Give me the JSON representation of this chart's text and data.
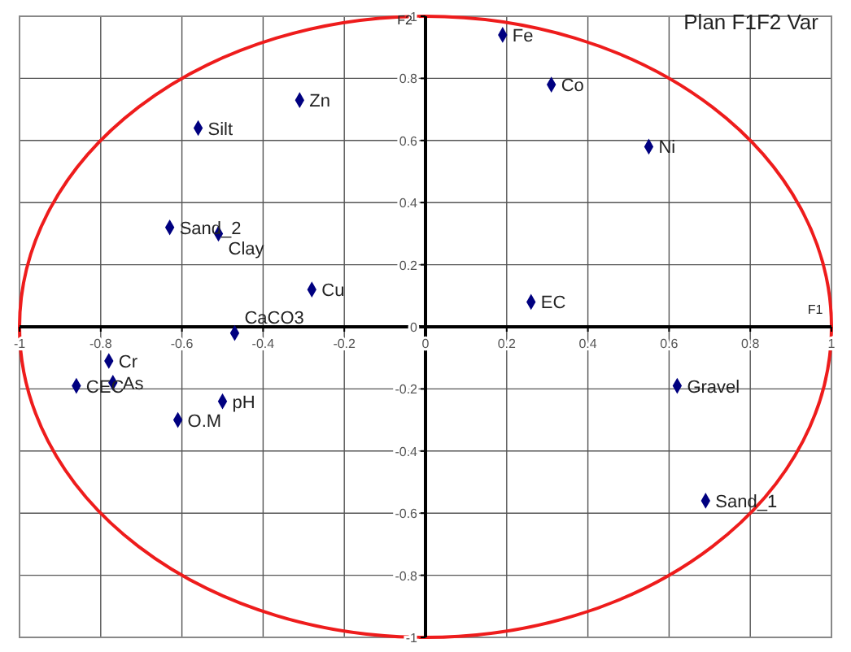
{
  "chart_data": {
    "type": "scatter",
    "title": "Plan F1F2 Var",
    "xlabel": "F1",
    "ylabel": "F2",
    "xlim": [
      -1,
      1
    ],
    "ylim": [
      -1,
      1
    ],
    "xticks": [
      -1,
      -0.8,
      -0.6,
      -0.4,
      -0.2,
      0,
      0.2,
      0.4,
      0.6,
      0.8,
      1
    ],
    "yticks": [
      -1,
      -0.8,
      -0.6,
      -0.4,
      -0.2,
      0,
      0.2,
      0.4,
      0.6,
      0.8,
      1
    ],
    "grid": true,
    "marker": "diamond",
    "series": [
      {
        "color": "#000080",
        "x": [
          0.19,
          0.31,
          0.55,
          0.26,
          -0.31,
          -0.56,
          -0.63,
          -0.51,
          -0.28,
          -0.47,
          -0.78,
          -0.77,
          -0.86,
          -0.5,
          -0.61,
          0.62,
          0.69
        ],
        "values": [
          0.94,
          0.78,
          0.58,
          0.08,
          0.73,
          0.64,
          0.32,
          0.3,
          0.12,
          -0.02,
          -0.11,
          -0.18,
          -0.19,
          -0.24,
          -0.3,
          -0.19,
          -0.56
        ]
      }
    ],
    "annotations": [
      {
        "text": "Fe",
        "x": 0.19,
        "y": 0.94
      },
      {
        "text": "Co",
        "x": 0.31,
        "y": 0.78
      },
      {
        "text": "Ni",
        "x": 0.55,
        "y": 0.58
      },
      {
        "text": "EC",
        "x": 0.26,
        "y": 0.08
      },
      {
        "text": "Zn",
        "x": -0.31,
        "y": 0.73
      },
      {
        "text": "Silt",
        "x": -0.56,
        "y": 0.64
      },
      {
        "text": "Sand_2",
        "x": -0.63,
        "y": 0.32
      },
      {
        "text": "Clay",
        "x": -0.51,
        "y": 0.3
      },
      {
        "text": "Cu",
        "x": -0.28,
        "y": 0.12
      },
      {
        "text": "CaCO3",
        "x": -0.47,
        "y": -0.02
      },
      {
        "text": "Cr",
        "x": -0.78,
        "y": -0.11
      },
      {
        "text": "As",
        "x": -0.77,
        "y": -0.18
      },
      {
        "text": "CEC",
        "x": -0.86,
        "y": -0.19
      },
      {
        "text": "pH",
        "x": -0.5,
        "y": -0.24
      },
      {
        "text": "O.M",
        "x": -0.61,
        "y": -0.3
      },
      {
        "text": "Gravel",
        "x": 0.62,
        "y": -0.19
      },
      {
        "text": "Sand_1",
        "x": 0.69,
        "y": -0.56
      }
    ]
  }
}
